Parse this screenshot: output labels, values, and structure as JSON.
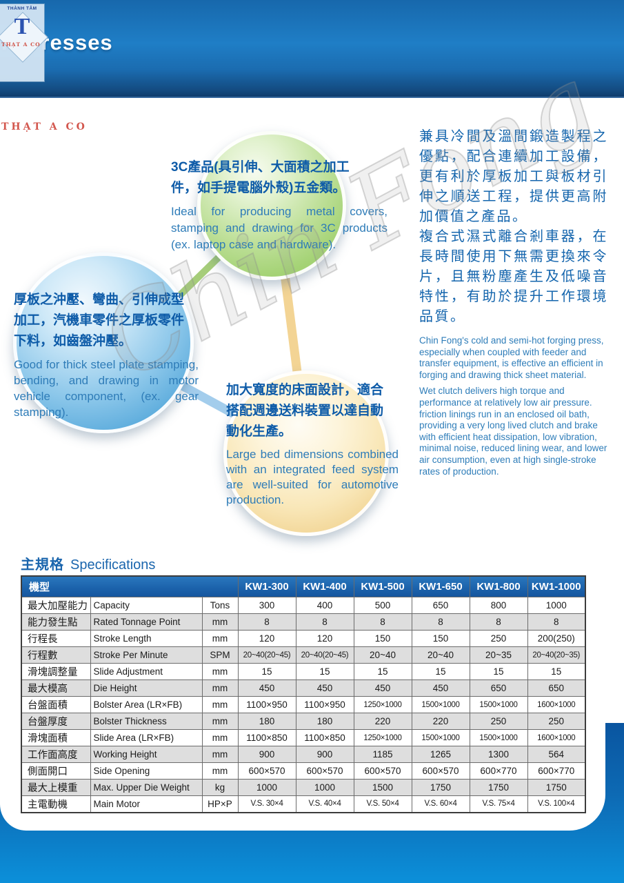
{
  "header": {
    "title": "le presses",
    "logo": {
      "top_text": "THÀNH TÂM",
      "monogram": "T"
    },
    "stamp_text": "THẠT A CO"
  },
  "bubbles": {
    "green": {
      "cn_lines": [
        "3C產品(具引伸、大面積之加工",
        "件，如手提電腦外殼)五金類。"
      ],
      "en": "Ideal for producing metal covers, stamping and drawing for 3C products (ex. laptop case and hardware)."
    },
    "blue": {
      "cn_lines": [
        "厚板之沖壓、彎曲、引伸成型",
        "加工，汽機車零件之厚板零件",
        "下料，如齒盤沖壓。"
      ],
      "en": "Good for thick steel plate stamping, bending, and drawing in motor vehicle component, (ex. gear stamping)."
    },
    "yellow": {
      "cn_lines": [
        "加大寬度的床面設計，適合",
        "搭配週邊送料裝置以達自動",
        "動化生產。"
      ],
      "en": "Large bed dimensions combined with an integrated feed system are well-suited for automotive production."
    }
  },
  "right_column": {
    "cn_paragraphs": [
      "兼具冷間及溫間鍛造製程之優點，配合連續加工設備，更有利於厚板加工與板材引伸之順送工程，提供更高附加價值之產品。",
      "複合式濕式離合剎車器，在長時間使用下無需更換來令片，且無粉塵產生及低噪音特性，有助於提升工作環境品質。"
    ],
    "en_paragraphs": [
      "Chin Fong's cold and semi-hot forging press, especially when coupled with feeder and transfer equipment, is effective an efficient in forging and drawing thick sheet material.",
      "Wet clutch delivers high torque and performance at relatively low air pressure. friction linings run in an enclosed oil bath, providing a very long lived clutch and brake with efficient heat dissipation, low vibration, minimal noise, reduced lining wear, and lower air consumption, even at high single-stroke rates of production."
    ]
  },
  "watermark": {
    "script_text": "Chin Fong"
  },
  "specs": {
    "title_cn": "主規格",
    "title_en": "Specifications",
    "table": {
      "model_header_label": "機型",
      "model_columns": [
        "KW1-300",
        "KW1-400",
        "KW1-500",
        "KW1-650",
        "KW1-800",
        "KW1-1000"
      ],
      "rows": [
        {
          "cn": "最大加壓能力",
          "en": "Capacity",
          "unit": "Tons",
          "values": [
            "300",
            "400",
            "500",
            "650",
            "800",
            "1000"
          ]
        },
        {
          "cn": "能力發生點",
          "en": "Rated Tonnage Point",
          "unit": "mm",
          "values": [
            "8",
            "8",
            "8",
            "8",
            "8",
            "8"
          ]
        },
        {
          "cn": "行程長",
          "en": "Stroke Length",
          "unit": "mm",
          "values": [
            "120",
            "120",
            "150",
            "150",
            "250",
            "200(250)"
          ]
        },
        {
          "cn": "行程數",
          "en": "Stroke Per Minute",
          "unit": "SPM",
          "values": [
            "20~40(20~45)",
            "20~40(20~45)",
            "20~40",
            "20~40",
            "20~35",
            "20~40(20~35)"
          ]
        },
        {
          "cn": "滑塊調整量",
          "en": "Slide Adjustment",
          "unit": "mm",
          "values": [
            "15",
            "15",
            "15",
            "15",
            "15",
            "15"
          ]
        },
        {
          "cn": "最大模高",
          "en": "Die Height",
          "unit": "mm",
          "values": [
            "450",
            "450",
            "450",
            "450",
            "650",
            "650"
          ]
        },
        {
          "cn": "台盤面積",
          "en": "Bolster Area (LR×FB)",
          "unit": "mm",
          "values": [
            "1100×950",
            "1100×950",
            "1250×1000",
            "1500×1000",
            "1500×1000",
            "1600×1000"
          ]
        },
        {
          "cn": "台盤厚度",
          "en": "Bolster Thickness",
          "unit": "mm",
          "values": [
            "180",
            "180",
            "220",
            "220",
            "250",
            "250"
          ]
        },
        {
          "cn": "滑塊面積",
          "en": "Slide Area (LR×FB)",
          "unit": "mm",
          "values": [
            "1100×850",
            "1100×850",
            "1250×1000",
            "1500×1000",
            "1500×1000",
            "1600×1000"
          ]
        },
        {
          "cn": "工作面高度",
          "en": "Working Height",
          "unit": "mm",
          "values": [
            "900",
            "900",
            "1185",
            "1265",
            "1300",
            "564"
          ]
        },
        {
          "cn": "側面開口",
          "en": "Side Opening",
          "unit": "mm",
          "values": [
            "600×570",
            "600×570",
            "600×570",
            "600×570",
            "600×770",
            "600×770"
          ]
        },
        {
          "cn": "最大上模重",
          "en": "Max. Upper Die Weight",
          "unit": "kg",
          "values": [
            "1000",
            "1000",
            "1500",
            "1750",
            "1750",
            "1750"
          ]
        },
        {
          "cn": "主電動機",
          "en": "Main Motor",
          "unit": "HP×P",
          "values": [
            "V.S. 30×4",
            "V.S. 40×4",
            "V.S. 50×4",
            "V.S. 60×4",
            "V.S. 75×4",
            "V.S. 100×4"
          ]
        }
      ]
    }
  },
  "colors": {
    "header_blue": "#1e7cc2",
    "accent_text_blue": "#1465ad",
    "table_header_blue": "#1c63ac",
    "row_alt_gray": "#dedede",
    "bubble_green": "#94c95f",
    "bubble_blue": "#3f9ad1",
    "bubble_yellow": "#eec97f"
  }
}
